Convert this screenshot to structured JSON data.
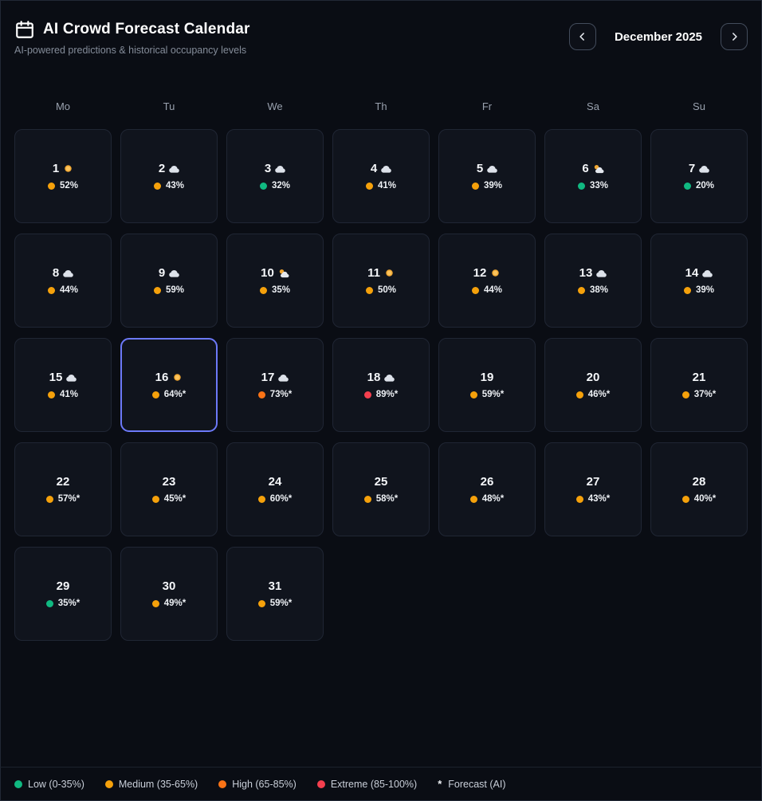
{
  "header": {
    "title": "AI Crowd Forecast Calendar",
    "subtitle": "AI-powered predictions & historical occupancy levels",
    "month_label": "December 2025",
    "prev_button_icon": "chevron-left",
    "next_button_icon": "chevron-right",
    "app_icon": "calendar-icon"
  },
  "weekdays": [
    "Mo",
    "Tu",
    "We",
    "Th",
    "Fr",
    "Sa",
    "Su"
  ],
  "colors": {
    "low": "#10b981",
    "medium": "#f5a10b",
    "high": "#f97316",
    "extreme": "#f43f4e",
    "accent": "#6c79f8"
  },
  "days": [
    {
      "day": 1,
      "weather": "sun",
      "level": "medium",
      "occupancy": 52,
      "forecast": false,
      "selected": false
    },
    {
      "day": 2,
      "weather": "cloud",
      "level": "medium",
      "occupancy": 43,
      "forecast": false,
      "selected": false
    },
    {
      "day": 3,
      "weather": "cloud",
      "level": "low",
      "occupancy": 32,
      "forecast": false,
      "selected": false
    },
    {
      "day": 4,
      "weather": "cloud",
      "level": "medium",
      "occupancy": 41,
      "forecast": false,
      "selected": false
    },
    {
      "day": 5,
      "weather": "cloud",
      "level": "medium",
      "occupancy": 39,
      "forecast": false,
      "selected": false
    },
    {
      "day": 6,
      "weather": "sun-cloud",
      "level": "low",
      "occupancy": 33,
      "forecast": false,
      "selected": false
    },
    {
      "day": 7,
      "weather": "cloud",
      "level": "low",
      "occupancy": 20,
      "forecast": false,
      "selected": false
    },
    {
      "day": 8,
      "weather": "cloud",
      "level": "medium",
      "occupancy": 44,
      "forecast": false,
      "selected": false
    },
    {
      "day": 9,
      "weather": "cloud",
      "level": "medium",
      "occupancy": 59,
      "forecast": false,
      "selected": false
    },
    {
      "day": 10,
      "weather": "sun-cloud",
      "level": "medium",
      "occupancy": 35,
      "forecast": false,
      "selected": false
    },
    {
      "day": 11,
      "weather": "sun",
      "level": "medium",
      "occupancy": 50,
      "forecast": false,
      "selected": false
    },
    {
      "day": 12,
      "weather": "sun",
      "level": "medium",
      "occupancy": 44,
      "forecast": false,
      "selected": false
    },
    {
      "day": 13,
      "weather": "cloud",
      "level": "medium",
      "occupancy": 38,
      "forecast": false,
      "selected": false
    },
    {
      "day": 14,
      "weather": "cloud",
      "level": "medium",
      "occupancy": 39,
      "forecast": false,
      "selected": false
    },
    {
      "day": 15,
      "weather": "cloud",
      "level": "medium",
      "occupancy": 41,
      "forecast": false,
      "selected": false
    },
    {
      "day": 16,
      "weather": "sun",
      "level": "medium",
      "occupancy": 64,
      "forecast": true,
      "selected": true
    },
    {
      "day": 17,
      "weather": "cloud",
      "level": "high",
      "occupancy": 73,
      "forecast": true,
      "selected": false
    },
    {
      "day": 18,
      "weather": "cloud",
      "level": "extreme",
      "occupancy": 89,
      "forecast": true,
      "selected": false
    },
    {
      "day": 19,
      "weather": null,
      "level": "medium",
      "occupancy": 59,
      "forecast": true,
      "selected": false
    },
    {
      "day": 20,
      "weather": null,
      "level": "medium",
      "occupancy": 46,
      "forecast": true,
      "selected": false
    },
    {
      "day": 21,
      "weather": null,
      "level": "medium",
      "occupancy": 37,
      "forecast": true,
      "selected": false
    },
    {
      "day": 22,
      "weather": null,
      "level": "medium",
      "occupancy": 57,
      "forecast": true,
      "selected": false
    },
    {
      "day": 23,
      "weather": null,
      "level": "medium",
      "occupancy": 45,
      "forecast": true,
      "selected": false
    },
    {
      "day": 24,
      "weather": null,
      "level": "medium",
      "occupancy": 60,
      "forecast": true,
      "selected": false
    },
    {
      "day": 25,
      "weather": null,
      "level": "medium",
      "occupancy": 58,
      "forecast": true,
      "selected": false
    },
    {
      "day": 26,
      "weather": null,
      "level": "medium",
      "occupancy": 48,
      "forecast": true,
      "selected": false
    },
    {
      "day": 27,
      "weather": null,
      "level": "medium",
      "occupancy": 43,
      "forecast": true,
      "selected": false
    },
    {
      "day": 28,
      "weather": null,
      "level": "medium",
      "occupancy": 40,
      "forecast": true,
      "selected": false
    },
    {
      "day": 29,
      "weather": null,
      "level": "low",
      "occupancy": 35,
      "forecast": true,
      "selected": false
    },
    {
      "day": 30,
      "weather": null,
      "level": "medium",
      "occupancy": 49,
      "forecast": true,
      "selected": false
    },
    {
      "day": 31,
      "weather": null,
      "level": "medium",
      "occupancy": 59,
      "forecast": true,
      "selected": false
    }
  ],
  "legend": {
    "items": [
      {
        "level": "low",
        "label": "Low (0-35%)"
      },
      {
        "level": "medium",
        "label": "Medium (35-65%)"
      },
      {
        "level": "high",
        "label": "High (65-85%)"
      },
      {
        "level": "extreme",
        "label": "Extreme (85-100%)"
      }
    ],
    "forecast_note": {
      "symbol": "*",
      "label": "Forecast (AI)"
    }
  }
}
